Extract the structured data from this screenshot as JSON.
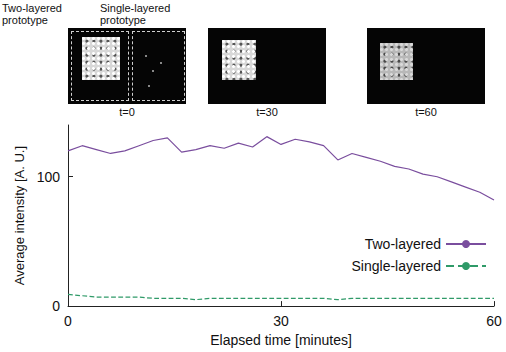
{
  "chart_data": {
    "type": "line",
    "xlabel": "Elapsed time [minutes]",
    "ylabel": "Average intensity [A. U.]",
    "x": [
      0,
      2,
      4,
      6,
      8,
      10,
      12,
      14,
      16,
      18,
      20,
      22,
      24,
      26,
      28,
      30,
      32,
      34,
      36,
      38,
      40,
      42,
      44,
      46,
      48,
      50,
      52,
      54,
      56,
      58,
      60
    ],
    "series": [
      {
        "name": "Two-layered",
        "color": "#7a4e9e",
        "line_style": "solid",
        "values": [
          120,
          124,
          121,
          118,
          120,
          124,
          128,
          130,
          119,
          121,
          124,
          122,
          126,
          123,
          131,
          125,
          129,
          127,
          124,
          113,
          118,
          115,
          112,
          108,
          106,
          102,
          100,
          96,
          92,
          88,
          82
        ]
      },
      {
        "name": "Single-layered",
        "color": "#2f9a68",
        "line_style": "dashed",
        "values": [
          9,
          8,
          7,
          7,
          7,
          7,
          6,
          6,
          6,
          5,
          6,
          6,
          6,
          6,
          6,
          6,
          6,
          6,
          6,
          5,
          6,
          6,
          6,
          6,
          6,
          6,
          6,
          6,
          6,
          6,
          6
        ]
      }
    ],
    "xlim": [
      0,
      60
    ],
    "xticks": [
      0,
      30,
      60
    ],
    "ylim": [
      0,
      140
    ],
    "yticks": [
      0,
      100
    ],
    "grid": false,
    "legend": "lower right",
    "marker": "none"
  },
  "image_panels": {
    "headers": [
      "Two-layered prototype",
      "Single-layered prototype"
    ],
    "times": [
      "t=0",
      "t=30",
      "t=60"
    ]
  }
}
